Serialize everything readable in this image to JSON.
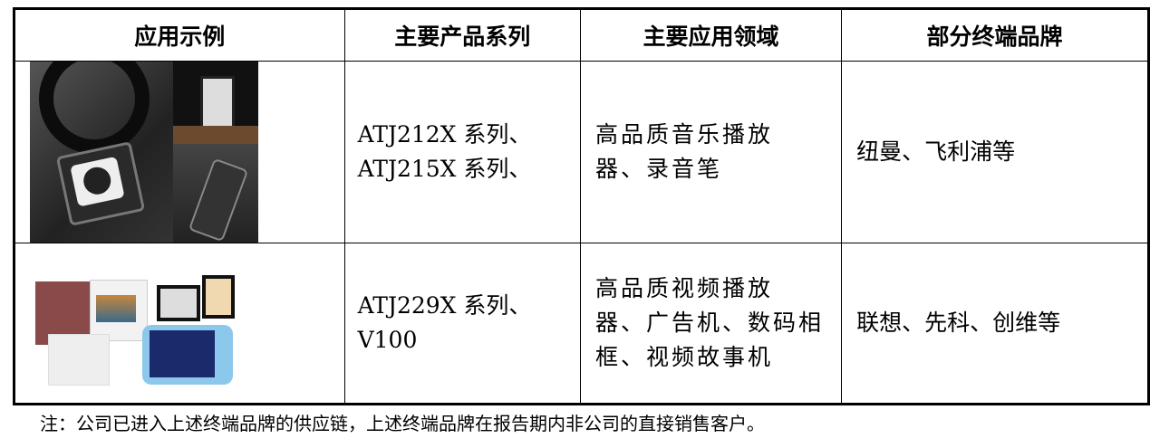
{
  "table": {
    "headers": [
      "应用示例",
      "主要产品系列",
      "主要应用领域",
      "部分终端品牌"
    ],
    "rows": [
      {
        "image": "audio-players-photo",
        "series": [
          "ATJ212X 系列、",
          "ATJ215X 系列、"
        ],
        "fields": [
          "高品质音乐播放",
          "器、录音笔"
        ],
        "brands": "纽曼、飞利浦等"
      },
      {
        "image": "video-devices-photo",
        "series": [
          "ATJ229X 系列、",
          "V100"
        ],
        "fields": [
          "高品质视频播放",
          "器、广告机、数码相",
          "框、视频故事机"
        ],
        "brands": "联想、先科、创维等"
      }
    ]
  },
  "note": "注：公司已进入上述终端品牌的供应链，上述终端品牌在报告期内非公司的直接销售客户。"
}
